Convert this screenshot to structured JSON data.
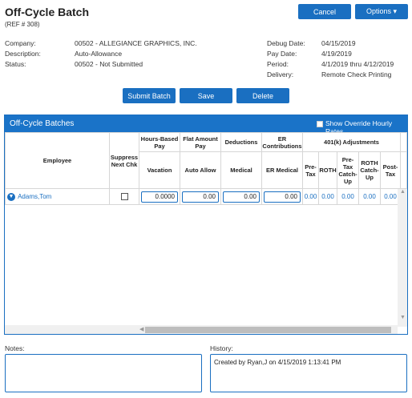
{
  "header": {
    "title": "Off-Cycle Batch",
    "ref": "(REF # 308)",
    "cancel_label": "Cancel",
    "options_label": "Options ▾"
  },
  "info": {
    "company_label": "Company:",
    "company_value": "00502 - ALLEGIANCE GRAPHICS, INC.",
    "description_label": "Description:",
    "description_value": "Auto-Allowance",
    "status_label": "Status:",
    "status_value": "00502 - Not Submitted",
    "debug_date_label": "Debug Date:",
    "debug_date_value": "04/15/2019",
    "pay_date_label": "Pay Date:",
    "pay_date_value": "4/19/2019",
    "period_label": "Period:",
    "period_value": "4/1/2019 thru 4/12/2019",
    "delivery_label": "Delivery:",
    "delivery_value": "Remote Check Printing"
  },
  "actions": {
    "submit_label": "Submit Batch",
    "save_label": "Save",
    "delete_label": "Delete"
  },
  "panel": {
    "title": "Off-Cycle Batches",
    "show_rates_label": "Show Override Hourly Rates",
    "show_rates_checked": false
  },
  "grid": {
    "group_headers": {
      "hours_based": "Hours-Based Pay",
      "flat_amount": "Flat Amount Pay",
      "deductions": "Deductions",
      "er_contrib": "ER Contributions",
      "k401": "401(k) Adjustments"
    },
    "col_headers": {
      "employee": "Employee",
      "suppress": "Suppress Next Chk",
      "vacation": "Vacation",
      "auto_allow": "Auto Allow",
      "medical": "Medical",
      "er_medical": "ER Medical",
      "pre_tax": "Pre-Tax",
      "roth": "ROTH",
      "pre_tax_catchup": "Pre-Tax Catch-Up",
      "roth_catchup": "ROTH Catch-Up",
      "post_tax": "Post-Tax"
    },
    "row": {
      "employee": "Adams,Tom",
      "suppress_checked": false,
      "vacation": "0.0000",
      "auto_allow": "0.00",
      "medical": "0.00",
      "er_medical": "0.00",
      "pre_tax": "0.00",
      "roth": "0.00",
      "pre_tax_catchup": "0.00",
      "roth_catchup": "0.00",
      "post_tax": "0.00"
    }
  },
  "notes": {
    "label": "Notes:",
    "value": ""
  },
  "history": {
    "label": "History:",
    "value": "Created by Ryan,J on 4/15/2019 1:13:41 PM"
  }
}
